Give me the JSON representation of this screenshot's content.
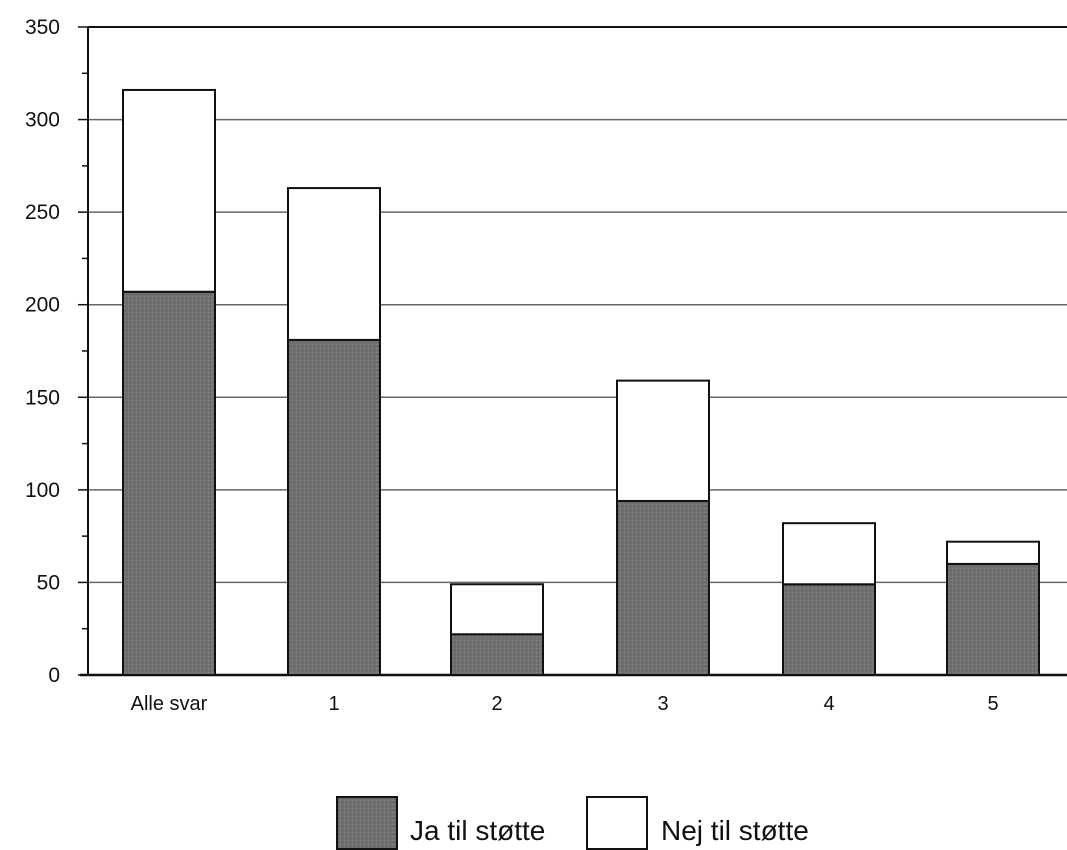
{
  "chart_data": {
    "type": "bar",
    "stacked": true,
    "categories": [
      "Alle svar",
      "1",
      "2",
      "3",
      "4",
      "5"
    ],
    "series": [
      {
        "name": "Ja til støtte",
        "values": [
          207,
          181,
          22,
          94,
          49,
          60
        ],
        "color": "#6e6e6e"
      },
      {
        "name": "Nej til støtte",
        "values": [
          109,
          82,
          27,
          65,
          33,
          12
        ],
        "color": "#ffffff"
      }
    ],
    "totals": [
      316,
      263,
      49,
      159,
      82,
      72
    ],
    "yticks": [
      0,
      50,
      100,
      150,
      200,
      250,
      300,
      350
    ],
    "ylim": [
      0,
      350
    ],
    "grid": true,
    "legend_position": "bottom"
  }
}
